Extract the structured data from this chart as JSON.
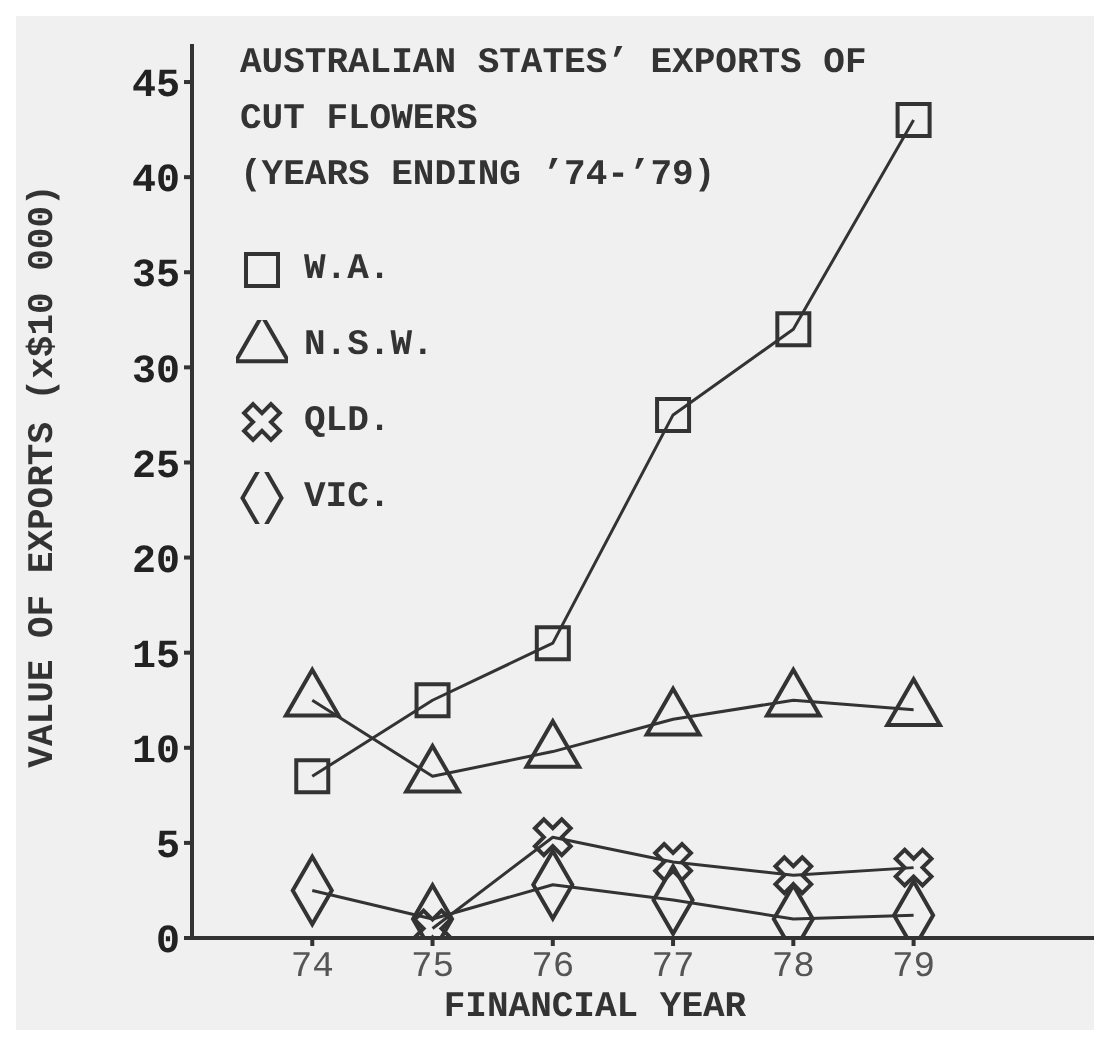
{
  "chart_data": {
    "type": "line",
    "title": "AUSTRALIAN STATES’ EXPORTS OF CUT FLOWERS",
    "subtitle": "(YEARS ENDING ’74-’79)",
    "xlabel": "FINANCIAL YEAR",
    "ylabel": "VALUE OF EXPORTS (x$10 000)",
    "x": [
      74,
      75,
      76,
      77,
      78,
      79
    ],
    "series": [
      {
        "name": "W.A.",
        "color": "#333333",
        "marker": "square",
        "values": [
          8.5,
          12.5,
          15.5,
          27.5,
          32,
          43
        ]
      },
      {
        "name": "N.S.W.",
        "color": "#333333",
        "marker": "triangle",
        "values": [
          12.5,
          8.5,
          9.8,
          11.5,
          12.5,
          12
        ]
      },
      {
        "name": "QLD.",
        "color": "#333333",
        "marker": "cross",
        "values": [
          null,
          0.5,
          5.3,
          4,
          3.3,
          3.7
        ]
      },
      {
        "name": "VIC.",
        "color": "#333333",
        "marker": "diamond",
        "values": [
          2.5,
          1,
          2.8,
          2,
          1,
          1.2
        ]
      }
    ],
    "xlim": [
      73,
      80.5
    ],
    "xticks": [
      74,
      75,
      76,
      77,
      78,
      79
    ],
    "ylim": [
      0,
      47
    ],
    "yticks": [
      0,
      5,
      10,
      15,
      20,
      25,
      30,
      35,
      40,
      45
    ],
    "grid": false,
    "legend": "top left",
    "line_style": "solid"
  }
}
